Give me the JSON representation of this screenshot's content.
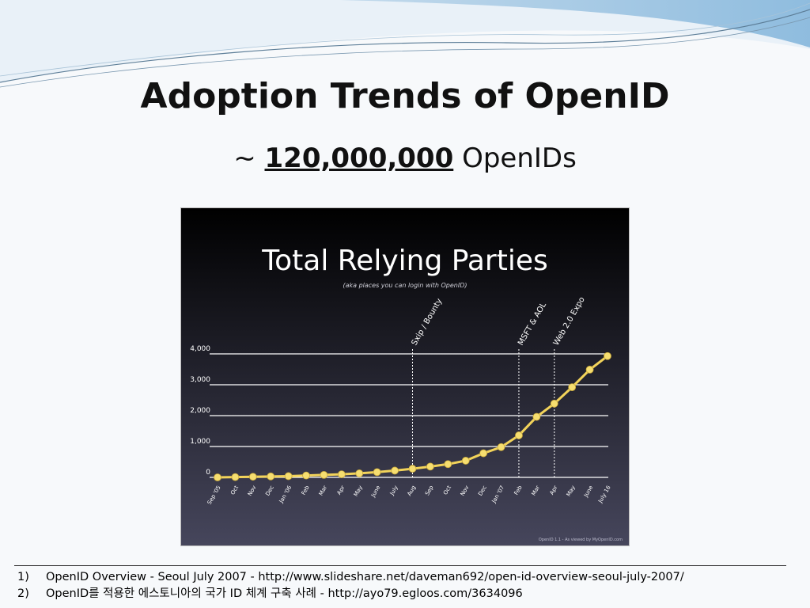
{
  "slide": {
    "title": "Adoption Trends of OpenID",
    "subtitle": {
      "prefix": "~",
      "number": "120,000,000",
      "suffix": "OpenIDs"
    }
  },
  "chart_data": {
    "type": "line",
    "title": "Total Relying Parties",
    "subtitle": "(aka places you can login with OpenID)",
    "categories": [
      "Sep '05",
      "Oct",
      "Nov",
      "Dec",
      "Jan '06",
      "Feb",
      "Mar",
      "Apr",
      "May",
      "June",
      "July",
      "Aug",
      "Sep",
      "Oct",
      "Nov",
      "Dec",
      "Jan '07",
      "Feb",
      "Mar",
      "Apr",
      "May",
      "June",
      "July 16"
    ],
    "series": [
      {
        "values": [
          0,
          10,
          20,
          30,
          40,
          60,
          80,
          100,
          130,
          170,
          220,
          280,
          350,
          430,
          540,
          780,
          980,
          1360,
          1960,
          2390,
          2920,
          3490,
          3930
        ]
      }
    ],
    "ylim": [
      0,
      4000
    ],
    "yticks": [
      0,
      1000,
      2000,
      3000,
      4000
    ],
    "ytick_labels": [
      "0",
      "1,000",
      "2,000",
      "3,000",
      "4,000"
    ],
    "grid": true,
    "annotations": [
      {
        "label": "Sxip / Bounty",
        "category_index": 11
      },
      {
        "label": "MSFT & AOL",
        "category_index": 17
      },
      {
        "label": "Web 2.0 Expo",
        "category_index": 19
      }
    ],
    "credit": "OpenID 1.1 - As viewed by MyOpenID.com",
    "colors": {
      "line": "#f2d35a",
      "marker": "#f6de70",
      "background_top": "#000000",
      "background_bottom": "#46465c",
      "grid": "#ffffff"
    }
  },
  "footnotes": [
    {
      "num": "1)",
      "text": "OpenID Overview - Seoul July 2007 - http://www.slideshare.net/daveman692/open-id-overview-seoul-july-2007/"
    },
    {
      "num": "2)",
      "text": "OpenID를 적용한 에스토니아의 국가 ID 체계 구축 사례 - http://ayo79.egloos.com/3634096"
    }
  ]
}
